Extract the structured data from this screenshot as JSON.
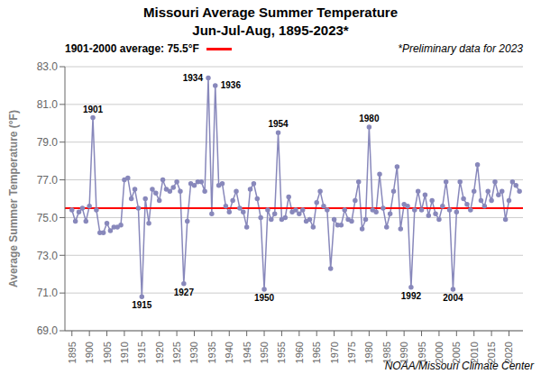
{
  "chart_data": {
    "type": "line",
    "title": "Missouri Average Summer Temperature",
    "subtitle": "Jun-Jul-Aug, 1895-2023*",
    "y_label": "Average Summer Temperature (°F)",
    "note": "*Preliminary data for 2023",
    "credit": "NOAA/Missouri Climate Center",
    "x": [
      1895,
      1896,
      1897,
      1898,
      1899,
      1900,
      1901,
      1902,
      1903,
      1904,
      1905,
      1906,
      1907,
      1908,
      1909,
      1910,
      1911,
      1912,
      1913,
      1914,
      1915,
      1916,
      1917,
      1918,
      1919,
      1920,
      1921,
      1922,
      1923,
      1924,
      1925,
      1926,
      1927,
      1928,
      1929,
      1930,
      1931,
      1932,
      1933,
      1934,
      1935,
      1936,
      1937,
      1938,
      1939,
      1940,
      1941,
      1942,
      1943,
      1944,
      1945,
      1946,
      1947,
      1948,
      1949,
      1950,
      1951,
      1952,
      1953,
      1954,
      1955,
      1956,
      1957,
      1958,
      1959,
      1960,
      1961,
      1962,
      1963,
      1964,
      1965,
      1966,
      1967,
      1968,
      1969,
      1970,
      1971,
      1972,
      1973,
      1974,
      1975,
      1976,
      1977,
      1978,
      1979,
      1980,
      1981,
      1982,
      1983,
      1984,
      1985,
      1986,
      1987,
      1988,
      1989,
      1990,
      1991,
      1992,
      1993,
      1994,
      1995,
      1996,
      1997,
      1998,
      1999,
      2000,
      2001,
      2002,
      2003,
      2004,
      2005,
      2006,
      2007,
      2008,
      2009,
      2010,
      2011,
      2012,
      2013,
      2014,
      2015,
      2016,
      2017,
      2018,
      2019,
      2020,
      2021,
      2022,
      2023
    ],
    "values": [
      75.4,
      74.8,
      75.3,
      75.5,
      74.8,
      75.6,
      80.3,
      75.4,
      74.2,
      74.2,
      74.7,
      74.3,
      74.5,
      74.5,
      74.6,
      77.0,
      77.1,
      76.0,
      76.5,
      75.5,
      70.8,
      76.0,
      74.7,
      76.5,
      76.3,
      75.9,
      77.0,
      76.5,
      76.4,
      76.6,
      76.9,
      76.4,
      71.5,
      74.8,
      76.8,
      76.7,
      76.9,
      76.9,
      76.4,
      82.4,
      75.2,
      82.0,
      76.7,
      76.8,
      75.6,
      75.3,
      75.9,
      76.4,
      75.5,
      75.3,
      74.5,
      76.5,
      76.8,
      76.0,
      75.0,
      71.2,
      75.4,
      74.9,
      75.2,
      79.5,
      74.9,
      75.0,
      76.1,
      75.3,
      75.4,
      75.2,
      75.4,
      74.8,
      74.9,
      74.5,
      75.8,
      76.4,
      75.6,
      75.4,
      72.3,
      74.9,
      74.6,
      74.6,
      75.4,
      74.9,
      74.8,
      75.9,
      76.9,
      74.4,
      74.9,
      79.8,
      75.4,
      75.3,
      77.3,
      75.5,
      74.5,
      75.2,
      76.4,
      77.7,
      74.4,
      75.7,
      75.6,
      71.3,
      75.4,
      76.4,
      75.4,
      76.2,
      75.1,
      75.9,
      75.2,
      74.9,
      75.6,
      76.9,
      75.4,
      71.2,
      75.3,
      76.9,
      76.0,
      75.7,
      75.4,
      76.4,
      77.8,
      75.9,
      75.6,
      76.4,
      75.9,
      76.9,
      76.2,
      76.4,
      74.9,
      75.9,
      76.9,
      76.7,
      76.4
    ],
    "color": "#8888BB",
    "marker": "circle",
    "reference_line": {
      "value": 75.5,
      "label": "1901-2000 average: 75.5°F",
      "color": "#FF0000"
    },
    "annotations": [
      {
        "text": "1901",
        "x": 1901,
        "y": 80.3
      },
      {
        "text": "1915",
        "x": 1915,
        "y": 70.8
      },
      {
        "text": "1927",
        "x": 1927,
        "y": 71.5
      },
      {
        "text": "1934",
        "x": 1934,
        "y": 82.4
      },
      {
        "text": "1936",
        "x": 1936,
        "y": 82.0
      },
      {
        "text": "1950",
        "x": 1950,
        "y": 71.2
      },
      {
        "text": "1954",
        "x": 1954,
        "y": 79.5
      },
      {
        "text": "1980",
        "x": 1980,
        "y": 79.8
      },
      {
        "text": "1992",
        "x": 1992,
        "y": 71.3
      },
      {
        "text": "2004",
        "x": 2004,
        "y": 71.2
      }
    ],
    "xlim": [
      1893,
      2024
    ],
    "xticks": [
      1895,
      1900,
      1905,
      1910,
      1915,
      1920,
      1925,
      1930,
      1935,
      1940,
      1945,
      1950,
      1955,
      1960,
      1965,
      1970,
      1975,
      1980,
      1985,
      1990,
      1995,
      2000,
      2005,
      2010,
      2015,
      2020
    ],
    "ylim": [
      69,
      83
    ],
    "yticks": [
      {
        "value": 69,
        "label": "69.0"
      },
      {
        "value": 71,
        "label": "71.0"
      },
      {
        "value": 73,
        "label": "73.0"
      },
      {
        "value": 75,
        "label": "75.0"
      },
      {
        "value": 77,
        "label": "77.0"
      },
      {
        "value": 79,
        "label": "79.0"
      },
      {
        "value": 81,
        "label": "81.0"
      },
      {
        "value": 83,
        "label": "83.0"
      }
    ],
    "grid": "y"
  }
}
